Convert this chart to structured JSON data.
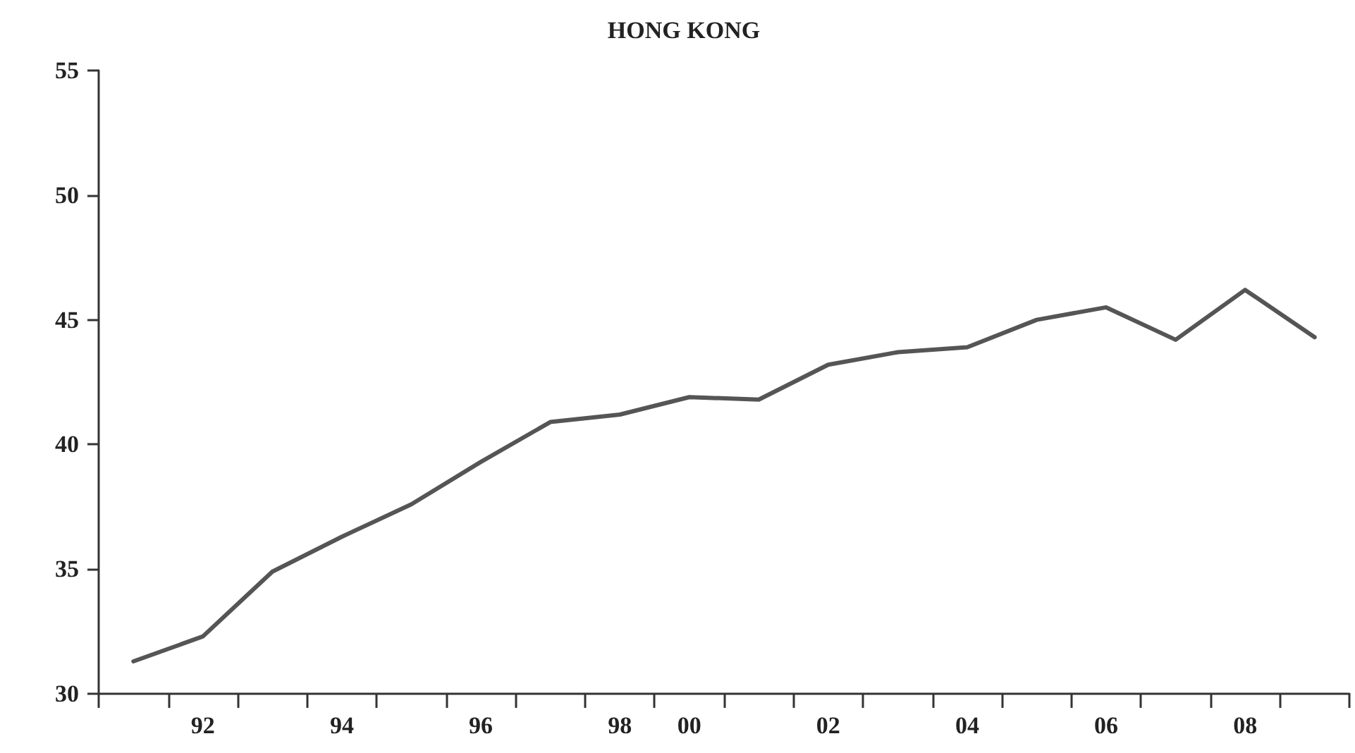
{
  "chart_data": {
    "type": "line",
    "title": "HONG KONG",
    "categories": [
      null,
      "92",
      null,
      "94",
      null,
      "96",
      null,
      "98",
      "00",
      null,
      "02",
      null,
      "04",
      null,
      "06",
      null,
      "08",
      null
    ],
    "series": [
      {
        "color": "#555555",
        "values": [
          31.3,
          32.3,
          34.9,
          36.3,
          37.6,
          39.3,
          40.9,
          41.2,
          41.9,
          41.8,
          43.2,
          43.7,
          43.9,
          45.0,
          45.5,
          44.2,
          46.2,
          44.3
        ]
      }
    ],
    "ylim": [
      30,
      55
    ],
    "yticks": [
      30,
      35,
      40,
      45,
      50,
      55
    ],
    "grid": false,
    "marker": "none",
    "line_style": "solid"
  }
}
